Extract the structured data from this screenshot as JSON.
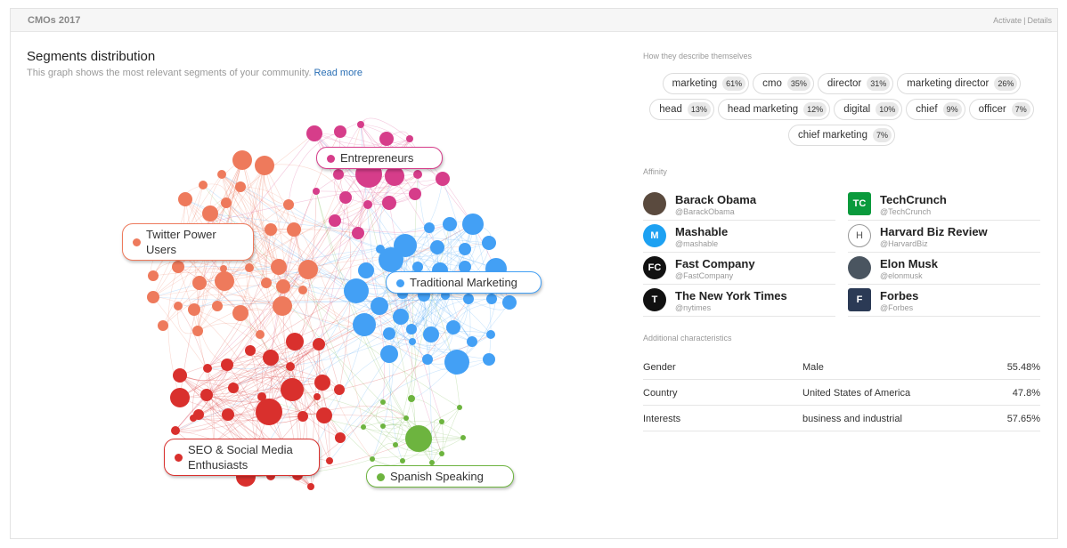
{
  "header": {
    "title": "CMOs 2017",
    "activate": "Activate",
    "separator": "|",
    "details": "Details"
  },
  "graph": {
    "title": "Segments distribution",
    "description": "This graph shows the most relevant segments of your community.",
    "read_more": "Read more",
    "segments": [
      {
        "key": "entrepreneurs",
        "label": "Entrepreneurs",
        "color": "#d63d8a"
      },
      {
        "key": "twitter",
        "label": "Twitter Power Users",
        "color": "#ee7a5c"
      },
      {
        "key": "traditional",
        "label": "Traditional Marketing",
        "color": "#43a0f5"
      },
      {
        "key": "seo",
        "label": "SEO & Social Media Enthusiasts",
        "color": "#d9302d"
      },
      {
        "key": "spanish",
        "label": "Spanish Speaking",
        "color": "#6db43f"
      }
    ]
  },
  "describe": {
    "title": "How they describe themselves",
    "rows": [
      [
        {
          "label": "marketing",
          "pct": "61%"
        },
        {
          "label": "cmo",
          "pct": "35%"
        },
        {
          "label": "director",
          "pct": "31%"
        },
        {
          "label": "marketing director",
          "pct": "26%"
        }
      ],
      [
        {
          "label": "head",
          "pct": "13%"
        },
        {
          "label": "head marketing",
          "pct": "12%"
        },
        {
          "label": "digital",
          "pct": "10%"
        },
        {
          "label": "chief",
          "pct": "9%"
        },
        {
          "label": "officer",
          "pct": "7%"
        }
      ],
      [
        {
          "label": "chief marketing",
          "pct": "7%"
        }
      ]
    ]
  },
  "affinity": {
    "title": "Affinity",
    "items": [
      {
        "name": "Barack Obama",
        "handle": "@BarackObama",
        "icon": "person-avatar-icon",
        "bg": "#5a4a3e",
        "glyph": ""
      },
      {
        "name": "TechCrunch",
        "handle": "@TechCrunch",
        "icon": "techcrunch-logo-icon",
        "bg": "#0a9a3c",
        "glyph": "TC"
      },
      {
        "name": "Mashable",
        "handle": "@mashable",
        "icon": "mashable-logo-icon",
        "bg": "#1da1f2",
        "glyph": "M"
      },
      {
        "name": "Harvard Biz Review",
        "handle": "@HarvardBiz",
        "icon": "harvard-logo-icon",
        "bg": "#ffffff",
        "glyph": "H"
      },
      {
        "name": "Fast Company",
        "handle": "@FastCompany",
        "icon": "fastcompany-logo-icon",
        "bg": "#111111",
        "glyph": "FC"
      },
      {
        "name": "Elon Musk",
        "handle": "@elonmusk",
        "icon": "person-avatar-icon",
        "bg": "#4a5560",
        "glyph": ""
      },
      {
        "name": "The New York Times",
        "handle": "@nytimes",
        "icon": "nytimes-logo-icon",
        "bg": "#111111",
        "glyph": "T"
      },
      {
        "name": "Forbes",
        "handle": "@Forbes",
        "icon": "forbes-logo-icon",
        "bg": "#2b3a55",
        "glyph": "F"
      }
    ]
  },
  "characteristics": {
    "title": "Additional characteristics",
    "rows": [
      {
        "key": "Gender",
        "value": "Male",
        "pct": "55.48%"
      },
      {
        "key": "Country",
        "value": "United States of America",
        "pct": "47.8%"
      },
      {
        "key": "Interests",
        "value": "business and industrial",
        "pct": "57.65%"
      }
    ]
  }
}
